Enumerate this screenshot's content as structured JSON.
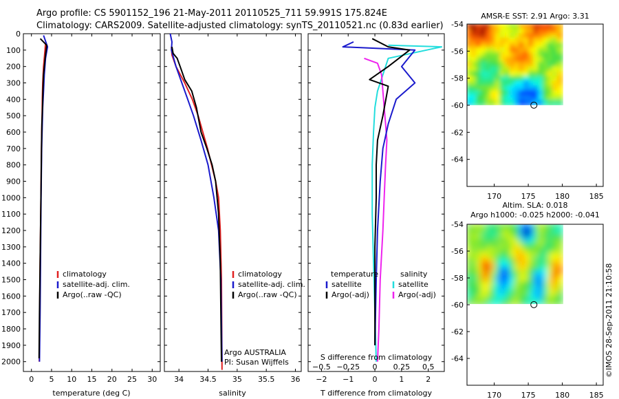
{
  "figure": {
    "title_line1": "Argo profile: CS 5901152_196 21-May-2011 20110525_711 59.991S 175.824E",
    "title_line2": "Climatology: CARS2009. Satellite-adjusted climatology: synTS_20110521.nc (0.83d earlier)",
    "credit_line1": "Argo AUSTRALIA",
    "credit_line2": "PI: Susan Wijffels",
    "timestamp": "©IMOS 28-Sep-2011 21:10:58"
  },
  "colors": {
    "climatology": "#e02020",
    "satellite": "#1a1acc",
    "argo": "#000000",
    "sat_salinity": "#22dddd",
    "argo_salinity": "#ee22ee"
  },
  "chart_data": [
    {
      "type": "line",
      "name": "temperature-panel",
      "xlabel": "temperature (deg C)",
      "ylabel": "",
      "xlim": [
        -2,
        32
      ],
      "ylim": [
        2060,
        0
      ],
      "xticks": [
        0,
        5,
        10,
        15,
        20,
        25,
        30
      ],
      "yticks": [
        0,
        100,
        200,
        300,
        400,
        500,
        600,
        700,
        800,
        900,
        1000,
        1100,
        1200,
        1300,
        1400,
        1500,
        1600,
        1700,
        1800,
        1900,
        2000
      ],
      "legend": {
        "placement": "lower-center",
        "entries": [
          {
            "label": "climatology",
            "color": "#e02020"
          },
          {
            "label": "satellite-adj. clim.",
            "color": "#1a1acc"
          },
          {
            "label": "Argo(..raw -QC)",
            "color": "#000000"
          }
        ]
      },
      "series": [
        {
          "color": "#e02020",
          "x": [
            3.5,
            3.3,
            3.0,
            2.8,
            2.7,
            2.65,
            2.55,
            2.45,
            2.35,
            2.25,
            2.15,
            2.05,
            1.95
          ],
          "y": [
            60,
            120,
            200,
            300,
            400,
            500,
            600,
            800,
            1000,
            1200,
            1400,
            1700,
            2000
          ]
        },
        {
          "color": "#1a1acc",
          "x": [
            3.0,
            4.0,
            3.5,
            3.2,
            3.0,
            2.8,
            2.7,
            2.55,
            2.45,
            2.35,
            2.25,
            2.15,
            2.0
          ],
          "y": [
            10,
            80,
            150,
            250,
            350,
            450,
            550,
            700,
            900,
            1100,
            1400,
            1700,
            2000
          ]
        },
        {
          "color": "#000000",
          "x": [
            2.2,
            3.8,
            3.4,
            3.0,
            2.85,
            2.75,
            2.6,
            2.5,
            2.4,
            2.3,
            2.2,
            2.1,
            2.0,
            1.9
          ],
          "y": [
            30,
            70,
            150,
            250,
            350,
            450,
            550,
            700,
            900,
            1100,
            1300,
            1500,
            1700,
            1980
          ]
        }
      ]
    },
    {
      "type": "line",
      "name": "salinity-panel",
      "xlabel": "salinity",
      "xlim": [
        33.75,
        36.1
      ],
      "ylim": [
        2060,
        0
      ],
      "xticks": [
        34,
        34.5,
        35,
        35.5,
        36
      ],
      "xticklabels": [
        "34",
        "34.5",
        "35",
        "35.5",
        "36"
      ],
      "legend": {
        "placement": "lower-center",
        "entries": [
          {
            "label": "climatology",
            "color": "#e02020"
          },
          {
            "label": "satellite-adj. clim.",
            "color": "#1a1acc"
          },
          {
            "label": "Argo(..raw -QC)",
            "color": "#000000"
          }
        ]
      },
      "series": [
        {
          "color": "#e02020",
          "x": [
            33.87,
            33.88,
            33.95,
            34.1,
            34.23,
            34.33,
            34.41,
            34.49,
            34.56,
            34.63,
            34.68,
            34.71,
            34.73,
            34.74
          ],
          "y": [
            80,
            130,
            200,
            300,
            400,
            500,
            600,
            700,
            800,
            900,
            1000,
            1200,
            1500,
            2050
          ]
        },
        {
          "color": "#1a1acc",
          "x": [
            33.85,
            33.88,
            33.87,
            33.95,
            34.05,
            34.15,
            34.25,
            34.38,
            34.5,
            34.6,
            34.68,
            34.72,
            34.74
          ],
          "y": [
            0,
            50,
            100,
            200,
            300,
            400,
            500,
            650,
            800,
            1000,
            1200,
            1500,
            2000
          ]
        },
        {
          "color": "#000000",
          "x": [
            33.88,
            33.9,
            33.97,
            34.02,
            34.1,
            34.22,
            34.3,
            34.38,
            34.48,
            34.57,
            34.63,
            34.68,
            34.71,
            34.73
          ],
          "y": [
            80,
            120,
            150,
            200,
            280,
            350,
            450,
            600,
            700,
            800,
            900,
            1100,
            1400,
            2000
          ]
        }
      ]
    },
    {
      "type": "line",
      "name": "difference-panel",
      "xlabel": "T difference from climatology",
      "xlabel2": "S difference from climatology",
      "xlim": [
        -2.5,
        2.6
      ],
      "ylim": [
        2060,
        0
      ],
      "xticks": [
        -2,
        -1,
        0,
        1,
        2
      ],
      "xticklabels": [
        "−2",
        "−1",
        "0",
        "1",
        "2"
      ],
      "xticks2": [
        -0.5,
        -0.25,
        0,
        0.25,
        0.5
      ],
      "xticklabels2": [
        "−0.5",
        "−0.25",
        "0",
        "0.25",
        "0.5"
      ],
      "legend": {
        "placement": "lower-center",
        "groups": [
          {
            "heading": "temperature",
            "entries": [
              {
                "label": "satellite",
                "color": "#1a1acc"
              },
              {
                "label": "Argo(-adj)",
                "color": "#000000"
              }
            ]
          },
          {
            "heading": "salinity",
            "entries": [
              {
                "label": "satellite",
                "color": "#22dddd"
              },
              {
                "label": "Argo(-adj)",
                "color": "#ee22ee"
              }
            ]
          }
        ]
      },
      "series": [
        {
          "color": "#22dddd",
          "x": [
            0.5,
            2.5,
            0.5,
            0.3,
            0.1,
            0.0,
            -0.05,
            -0.1,
            -0.1,
            -0.05,
            0,
            0.05
          ],
          "y": [
            70,
            80,
            150,
            250,
            350,
            450,
            600,
            800,
            1100,
            1400,
            1700,
            2000
          ]
        },
        {
          "color": "#ee22ee",
          "x": [
            -0.4,
            0.1,
            0.25,
            0.3,
            0.35,
            0.4,
            0.45,
            0.4,
            0.35,
            0.3,
            0.2,
            0.15,
            0.1
          ],
          "y": [
            150,
            180,
            250,
            350,
            450,
            550,
            650,
            800,
            1000,
            1200,
            1500,
            1800,
            2000
          ]
        },
        {
          "color": "#1a1acc",
          "x": [
            -0.8,
            -1.2,
            1.5,
            1.0,
            1.5,
            0.8,
            0.5,
            0.3,
            0.2,
            0.1,
            0.05,
            0.0
          ],
          "y": [
            50,
            80,
            100,
            200,
            300,
            400,
            550,
            700,
            900,
            1200,
            1500,
            1900
          ]
        },
        {
          "color": "#000000",
          "x": [
            -0.1,
            0.5,
            1.3,
            0.5,
            -0.2,
            0.5,
            0.3,
            0.1,
            0.05,
            0.05,
            0.0,
            0.0
          ],
          "y": [
            30,
            80,
            100,
            200,
            280,
            320,
            500,
            650,
            800,
            1000,
            1300,
            1900
          ]
        }
      ]
    },
    {
      "type": "heatmap",
      "name": "sst-map",
      "title": "AMSR-E SST: 2.91  Argo: 3.31",
      "xlim": [
        166,
        186
      ],
      "ylim": [
        -66,
        -54
      ],
      "xticks": [
        170,
        175,
        180,
        185
      ],
      "yticks": [
        -54,
        -56,
        -58,
        -60,
        -62,
        -64
      ],
      "data_extent": {
        "lon": [
          166,
          180
        ],
        "lat": [
          -60,
          -54
        ]
      },
      "marker": {
        "lon": 175.824,
        "lat": -59.991
      },
      "colorscale": "jet"
    },
    {
      "type": "heatmap",
      "name": "sla-map",
      "title": "Altim. SLA: 0.018",
      "title2": "Argo h1000: -0.025 h2000: -0.041",
      "xlim": [
        166,
        186
      ],
      "ylim": [
        -66,
        -54
      ],
      "xticks": [
        170,
        175,
        180,
        185
      ],
      "yticks": [
        -54,
        -56,
        -58,
        -60,
        -62,
        -64
      ],
      "data_extent": {
        "lon": [
          166,
          180
        ],
        "lat": [
          -60,
          -54
        ]
      },
      "marker": {
        "lon": 175.824,
        "lat": -59.991
      },
      "colorscale": "jet"
    }
  ]
}
